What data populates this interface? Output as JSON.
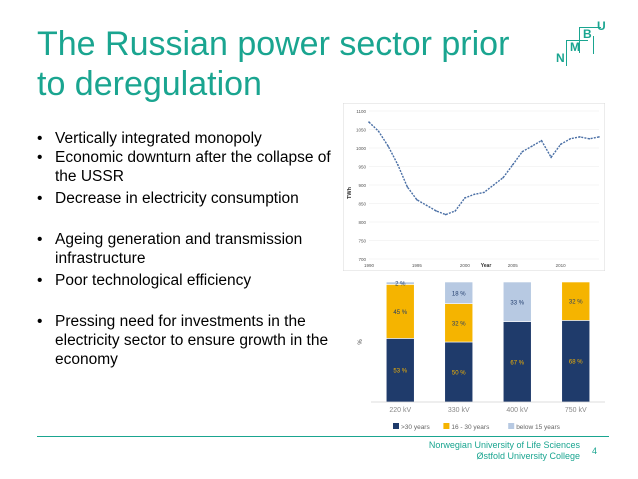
{
  "slide": {
    "title_line1": "The Russian power sector prior",
    "title_line2": "to deregulation",
    "bullets": [
      "Vertically integrated monopoly",
      "Economic downturn after the collapse of the USSR",
      "Decrease in electricity consumption",
      "Ageing generation and transmission infrastructure",
      "Poor technological efficiency",
      "Pressing need for investments in the electricity sector to ensure growth in the economy"
    ],
    "logo_letters": [
      "N",
      "M",
      "B",
      "U"
    ],
    "footer_line1": "Norwegian University of Life Sciences",
    "footer_line2": "Østfold University College",
    "page_number": "4",
    "accent_color": "#1aa590"
  },
  "chart_data": [
    {
      "type": "line",
      "ylabel": "TWh",
      "xlabel": "Year",
      "ylim": [
        700,
        1100
      ],
      "yticks": [
        "1100",
        "1050",
        "1000",
        "950",
        "900",
        "850",
        "800",
        "750",
        "700"
      ],
      "xticks": [
        "1990",
        "1995",
        "2000",
        "2005",
        "2010"
      ],
      "series": [
        {
          "x": [
            1990,
            1991,
            1992,
            1993,
            1994,
            1995,
            1996,
            1997,
            1998,
            1999,
            2000,
            2001,
            2002,
            2003,
            2004,
            2005,
            2006,
            2007,
            2008,
            2009,
            2010,
            2011,
            2012,
            2013,
            2014
          ],
          "values": [
            1070,
            1045,
            1005,
            955,
            895,
            860,
            845,
            830,
            820,
            830,
            865,
            875,
            880,
            900,
            920,
            955,
            990,
            1005,
            1020,
            975,
            1010,
            1025,
            1030,
            1025,
            1030
          ],
          "color": "#4a6fa5"
        }
      ]
    },
    {
      "type": "bar",
      "stacked": true,
      "categories": [
        "220 kV",
        "330 kV",
        "400 kV",
        "750 kV"
      ],
      "series": [
        {
          "name": ">30 years",
          "values": [
            53,
            50,
            67,
            68
          ],
          "color": "#1f3b6b"
        },
        {
          "name": "16 - 30 years",
          "values": [
            45,
            32,
            0,
            32
          ],
          "color": "#f5b400"
        },
        {
          "name": "below 15 years",
          "values": [
            2,
            18,
            33,
            0
          ],
          "color": "#b7c9e2"
        }
      ],
      "labels": [
        [
          "53 %",
          "45 %",
          "2 %"
        ],
        [
          "50 %",
          "32 %",
          "18 %"
        ],
        [
          "67 %",
          "",
          "33 %"
        ],
        [
          "68 %",
          "32 %",
          ""
        ]
      ],
      "ylabel": "%",
      "ylim": [
        0,
        100
      ],
      "legend_position": "bottom"
    }
  ]
}
